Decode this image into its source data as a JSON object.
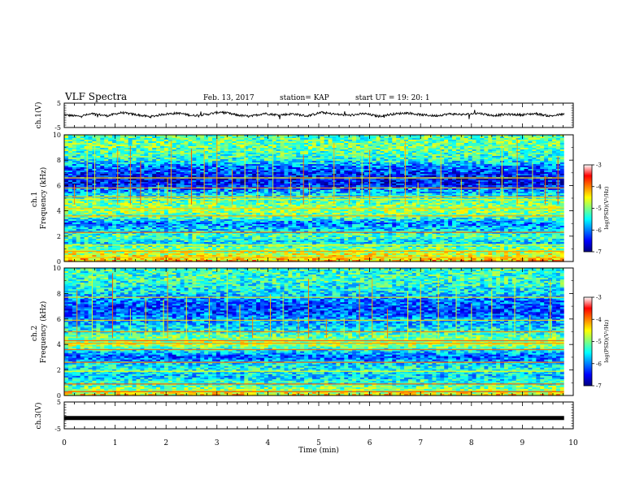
{
  "header": {
    "title": "VLF Spectra",
    "date": "Feb. 13, 2017",
    "station": "station= KAP",
    "start": "start UT =  19: 20: 1"
  },
  "chart_data": [
    {
      "type": "line",
      "name": "ch1-waveform",
      "ylabel": "ch.1(V)",
      "ylim": [
        -5,
        5
      ],
      "yticks": [
        "5",
        "-5"
      ],
      "xlim": [
        0,
        10
      ],
      "x_extent": [
        0,
        9.82
      ],
      "baseline": 0.3,
      "approx_amplitude": 1.0,
      "values": [
        0.2,
        -0.4,
        0.6,
        -0.2,
        1.1,
        0.3,
        -0.6,
        0.5,
        0.9,
        -0.1,
        0.4,
        1.4,
        0.2,
        -0.5,
        0.8,
        0.1,
        0.6,
        -0.3,
        1.2,
        0.4,
        0.0,
        0.7,
        -0.4,
        0.5,
        1.0,
        0.2,
        -0.2,
        0.6,
        0.3,
        0.9,
        -0.1,
        0.4,
        0.2,
        0.7,
        -0.3,
        0.5
      ]
    },
    {
      "type": "heatmap",
      "name": "ch1-spectrogram",
      "ylabel": "ch.1\nFrequency (kHz)",
      "ylim": [
        0,
        10
      ],
      "yticks": [
        "0",
        "2",
        "4",
        "6",
        "8",
        "10"
      ],
      "xlim": [
        0,
        10
      ],
      "x_extent": [
        0,
        9.82
      ],
      "zlabel": "log(PSD)(V²/Hz)",
      "zlim": [
        -7,
        -3
      ],
      "zticks": [
        "-3",
        "-4",
        "-5",
        "-6",
        "-7"
      ],
      "frequency_profile": [
        {
          "f": 0.0,
          "v": -4.2
        },
        {
          "f": 0.5,
          "v": -4.6
        },
        {
          "f": 1.0,
          "v": -5.0
        },
        {
          "f": 1.5,
          "v": -5.6
        },
        {
          "f": 2.0,
          "v": -5.2
        },
        {
          "f": 2.5,
          "v": -5.6
        },
        {
          "f": 3.0,
          "v": -6.0
        },
        {
          "f": 3.5,
          "v": -5.2
        },
        {
          "f": 4.0,
          "v": -4.9
        },
        {
          "f": 4.5,
          "v": -5.0
        },
        {
          "f": 5.0,
          "v": -5.3
        },
        {
          "f": 5.5,
          "v": -5.8
        },
        {
          "f": 6.0,
          "v": -6.4
        },
        {
          "f": 6.5,
          "v": -6.5
        },
        {
          "f": 7.0,
          "v": -6.3
        },
        {
          "f": 7.5,
          "v": -6.0
        },
        {
          "f": 8.0,
          "v": -5.4
        },
        {
          "f": 9.0,
          "v": -5.1
        },
        {
          "f": 10.0,
          "v": -5.2
        }
      ],
      "spectral_lines_khz": [
        0.3,
        0.8,
        1.3,
        2.3,
        3.6,
        4.2,
        4.9,
        5.1,
        5.8,
        6.6
      ],
      "impulse_times_min": [
        0.2,
        0.45,
        0.6,
        1.05,
        1.3,
        1.5,
        1.85,
        2.03,
        2.1,
        2.5,
        2.75,
        3.0,
        3.3,
        3.55,
        3.8,
        4.1,
        4.45,
        4.7,
        4.82,
        5.3,
        5.6,
        5.85,
        6.0,
        6.4,
        6.7,
        6.95,
        7.4,
        7.8,
        8.15,
        8.6,
        8.9,
        9.2,
        9.45,
        9.7
      ]
    },
    {
      "type": "heatmap",
      "name": "ch2-spectrogram",
      "ylabel": "ch.2\nFrequency (kHz)",
      "ylim": [
        0,
        10
      ],
      "yticks": [
        "0",
        "2",
        "4",
        "6",
        "8",
        "10"
      ],
      "xlim": [
        0,
        10
      ],
      "x_extent": [
        0,
        9.82
      ],
      "zlabel": "log(PSD)(V²/Hz)",
      "zlim": [
        -7,
        -3
      ],
      "zticks": [
        "-3",
        "-4",
        "-5",
        "-6",
        "-7"
      ],
      "frequency_profile": [
        {
          "f": 0.0,
          "v": -4.4
        },
        {
          "f": 0.5,
          "v": -5.0
        },
        {
          "f": 1.0,
          "v": -5.3
        },
        {
          "f": 1.5,
          "v": -5.7
        },
        {
          "f": 2.0,
          "v": -5.4
        },
        {
          "f": 2.5,
          "v": -5.6
        },
        {
          "f": 3.0,
          "v": -6.2
        },
        {
          "f": 3.5,
          "v": -5.6
        },
        {
          "f": 4.0,
          "v": -4.7
        },
        {
          "f": 4.5,
          "v": -5.0
        },
        {
          "f": 5.0,
          "v": -5.4
        },
        {
          "f": 5.5,
          "v": -5.7
        },
        {
          "f": 6.0,
          "v": -5.9
        },
        {
          "f": 6.5,
          "v": -6.2
        },
        {
          "f": 7.0,
          "v": -6.2
        },
        {
          "f": 7.5,
          "v": -6.0
        },
        {
          "f": 8.0,
          "v": -5.6
        },
        {
          "f": 9.0,
          "v": -5.3
        },
        {
          "f": 10.0,
          "v": -5.3
        }
      ],
      "spectral_lines_khz": [
        0.3,
        0.9,
        1.9,
        2.6,
        3.6,
        4.1,
        4.3,
        5.0,
        5.9,
        7.7
      ],
      "impulse_times_min": [
        0.25,
        0.55,
        0.95,
        1.3,
        1.6,
        1.95,
        2.03,
        2.4,
        2.85,
        3.2,
        3.45,
        3.7,
        4.05,
        4.3,
        4.6,
        4.8,
        5.15,
        5.5,
        5.8,
        6.05,
        6.35,
        6.75,
        7.0,
        7.35,
        7.7,
        8.0,
        8.4,
        8.85,
        9.15,
        9.55
      ]
    },
    {
      "type": "line",
      "name": "ch3-waveform",
      "ylabel": "ch.3(V)",
      "ylim": [
        -5,
        5
      ],
      "yticks": [
        "5",
        "-5"
      ],
      "xlim": [
        0,
        10
      ],
      "x_extent": [
        0,
        9.82
      ],
      "values": [
        -1.0,
        -1.0
      ]
    }
  ],
  "xaxis": {
    "label": "Time (min)",
    "ticks": [
      "0",
      "1",
      "2",
      "3",
      "4",
      "5",
      "6",
      "7",
      "8",
      "9",
      "10"
    ],
    "range": [
      0,
      10
    ]
  }
}
